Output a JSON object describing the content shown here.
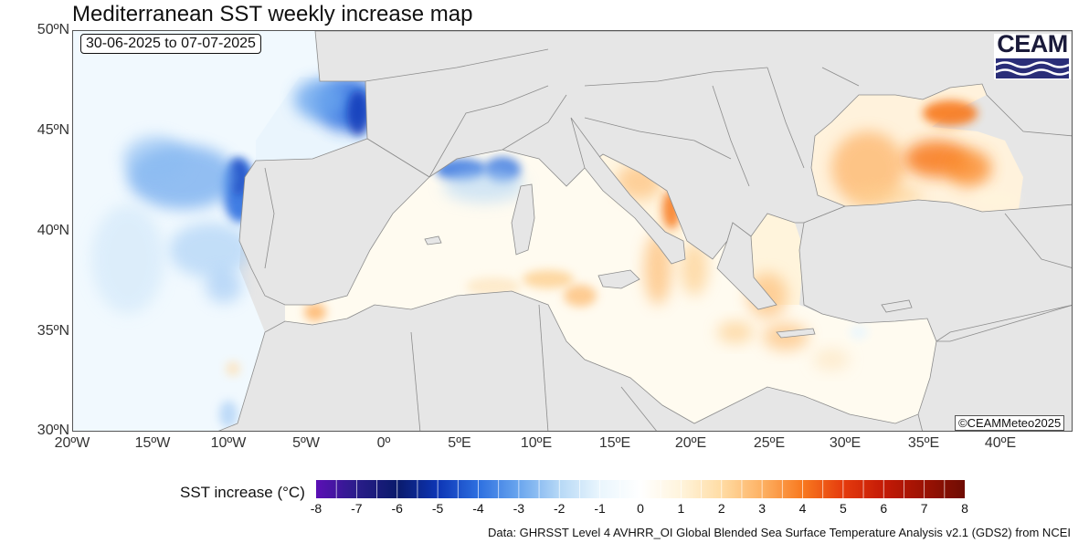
{
  "title": "Mediterranean SST weekly increase map",
  "date_range": "30-06-2025 to 07-07-2025",
  "logo_text": "CEAM",
  "credit": "©CEAMMeteo2025",
  "map": {
    "lat_labels": [
      "50ºN",
      "45ºN",
      "40ºN",
      "35ºN",
      "30ºN"
    ],
    "lon_labels": [
      "20ºW",
      "15ºW",
      "10ºW",
      "5ºW",
      "0º",
      "5ºE",
      "10ºE",
      "15ºE",
      "20ºE",
      "25ºE",
      "30ºE",
      "35ºE",
      "40ºE"
    ],
    "lat_range": [
      30,
      50
    ],
    "lon_range": [
      -20,
      42
    ],
    "land_color": "#e6e6e6",
    "border_color": "#8c8c8c"
  },
  "legend": {
    "title": "SST increase (°C)",
    "ticks": [
      "-8",
      "-7",
      "-6",
      "-5",
      "-4",
      "-3",
      "-2",
      "-1",
      "0",
      "1",
      "2",
      "3",
      "4",
      "5",
      "6",
      "7",
      "8"
    ],
    "colors": [
      "#5b0fb5",
      "#2a1d8a",
      "#0a1a6b",
      "#0d35b5",
      "#2d6fe0",
      "#6aa6ee",
      "#b6d8f6",
      "#eaf6fd",
      "#ffffff",
      "#fff4dc",
      "#ffdca4",
      "#fdb163",
      "#f8791f",
      "#e53b0d",
      "#c41a06",
      "#9c1203",
      "#6e0c03"
    ]
  },
  "source": "Data: GHRSST Level 4 AVHRR_OI Global Blended Sea Surface Temperature Analysis v2.1 (GDS2) from NCEI"
}
